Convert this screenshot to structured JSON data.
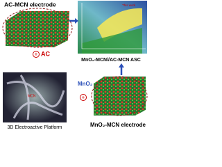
{
  "ac_electrode": {
    "title": "AC-MCN electrode",
    "additive": "AC"
  },
  "device": {
    "title": "MnO₂-MCN//AC-MCN ASC",
    "note": "This work"
  },
  "platform": {
    "title": "3D Electroactive Platform"
  },
  "mno2_electrode": {
    "title": "MnO₂-MCN electrode",
    "additive": "MnO₂"
  }
}
